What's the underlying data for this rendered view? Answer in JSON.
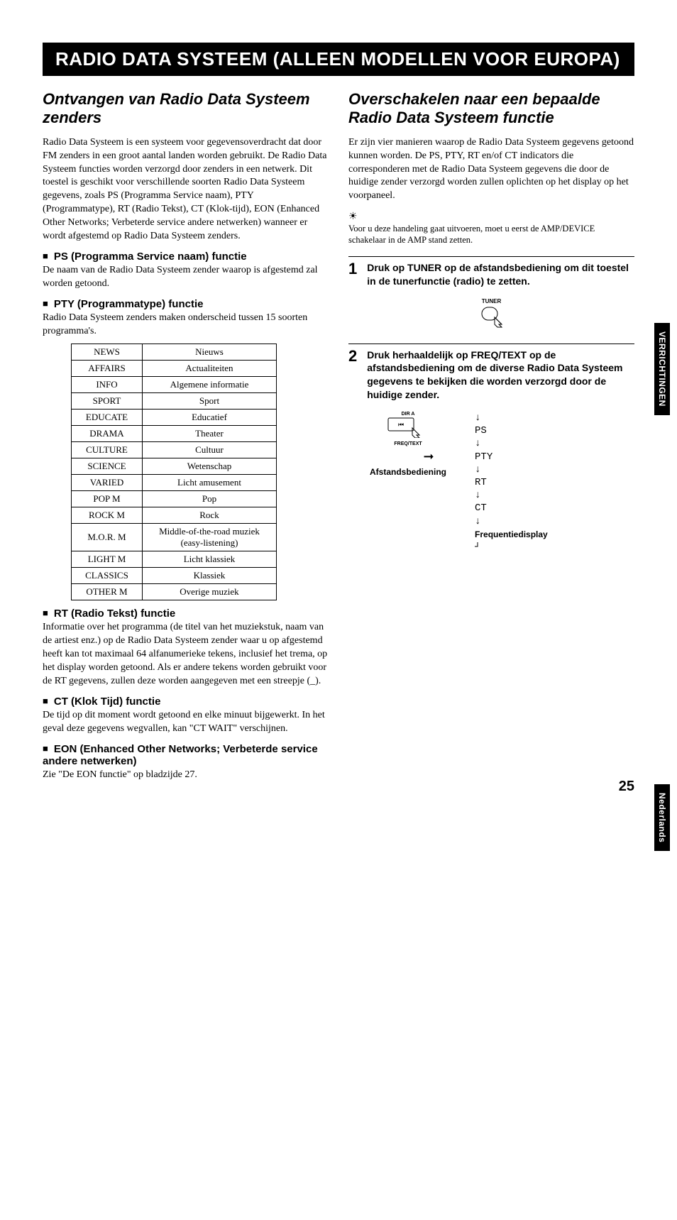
{
  "title": "RADIO DATA SYSTEEM (ALLEEN MODELLEN VOOR EUROPA)",
  "left": {
    "section_title": "Ontvangen van Radio Data Systeem zenders",
    "intro": "Radio Data Systeem is een systeem voor gegevensoverdracht dat door FM zenders in een groot aantal landen worden gebruikt. De Radio Data Systeem functies worden verzorgd door zenders in een netwerk. Dit toestel is geschikt voor verschillende soorten Radio Data Systeem gegevens, zoals PS (Programma Service naam), PTY (Programmatype), RT (Radio Tekst), CT (Klok-tijd), EON (Enhanced Other Networks; Verbeterde service andere netwerken) wanneer er wordt afgestemd op Radio Data Systeem zenders.",
    "ps_head": "PS (Programma Service naam) functie",
    "ps_body": "De naam van de Radio Data Systeem zender waarop is afgestemd zal worden getoond.",
    "pty_head": "PTY (Programmatype) functie",
    "pty_body": "Radio Data Systeem zenders maken onderscheid tussen 15 soorten programma's.",
    "pty_rows": [
      [
        "NEWS",
        "Nieuws"
      ],
      [
        "AFFAIRS",
        "Actualiteiten"
      ],
      [
        "INFO",
        "Algemene informatie"
      ],
      [
        "SPORT",
        "Sport"
      ],
      [
        "EDUCATE",
        "Educatief"
      ],
      [
        "DRAMA",
        "Theater"
      ],
      [
        "CULTURE",
        "Cultuur"
      ],
      [
        "SCIENCE",
        "Wetenschap"
      ],
      [
        "VARIED",
        "Licht amusement"
      ],
      [
        "POP M",
        "Pop"
      ],
      [
        "ROCK M",
        "Rock"
      ],
      [
        "M.O.R. M",
        "Middle-of-the-road muziek (easy-listening)"
      ],
      [
        "LIGHT M",
        "Licht klassiek"
      ],
      [
        "CLASSICS",
        "Klassiek"
      ],
      [
        "OTHER M",
        "Overige muziek"
      ]
    ],
    "rt_head": "RT (Radio Tekst) functie",
    "rt_body": "Informatie over het programma (de titel van het muziekstuk, naam van de artiest enz.) op de Radio Data Systeem zender waar u op afgestemd heeft kan tot maximaal 64 alfanumerieke tekens, inclusief het trema, op het display worden getoond. Als er andere tekens worden gebruikt voor de RT gegevens, zullen deze worden aangegeven met een streepje (_).",
    "ct_head": "CT (Klok Tijd) functie",
    "ct_body": "De tijd op dit moment wordt getoond en elke minuut bijgewerkt. In het geval deze gegevens wegvallen, kan \"CT WAIT\" verschijnen.",
    "eon_head": "EON (Enhanced Other Networks; Verbeterde service andere netwerken)",
    "eon_body": "Zie \"De EON functie\" op bladzijde 27."
  },
  "right": {
    "section_title": "Overschakelen naar een bepaalde Radio Data Systeem functie",
    "intro": "Er zijn vier manieren waarop de Radio Data Systeem gegevens getoond kunnen worden. De PS, PTY, RT en/of CT indicators die corresponderen met de Radio Data Systeem gegevens die door de huidige zender verzorgd worden zullen oplichten op het display op het voorpaneel.",
    "note": "Voor u deze handeling gaat uitvoeren, moet u eerst de AMP/DEVICE schakelaar in de AMP stand zetten.",
    "step1_num": "1",
    "step1_text": "Druk op TUNER op de afstandsbediening om dit toestel in de tunerfunctie (radio) te zetten.",
    "tuner_label": "TUNER",
    "step2_num": "2",
    "step2_text": "Druk herhaaldelijk op FREQ/TEXT op de afstandsbediening om de diverse Radio Data Systeem gegevens te bekijken die worden verzorgd door de huidige zender.",
    "dir_a": "DIR A",
    "freq_text": "FREQ/TEXT",
    "remote_label": "Afstandsbediening",
    "cycle": [
      "PS",
      "PTY",
      "RT",
      "CT"
    ],
    "freq_display_label": "Frequentiedisplay"
  },
  "tab1": "VERRICHTINGEN",
  "tab2": "Nederlands",
  "page": "25"
}
